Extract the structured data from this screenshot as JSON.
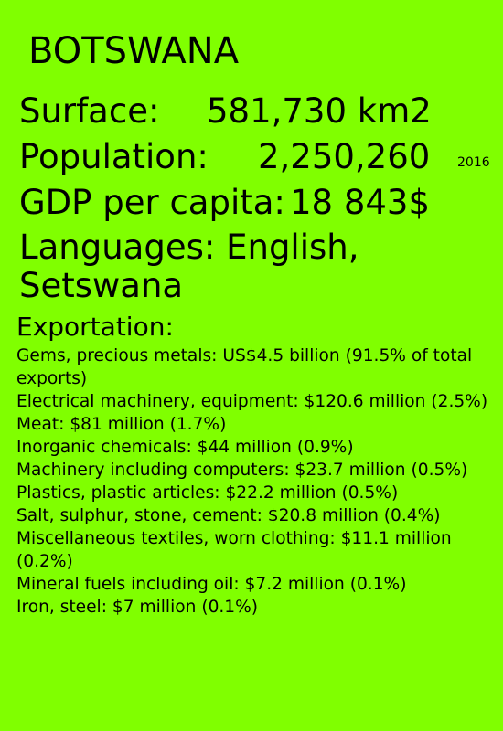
{
  "country": "BOTSWANA",
  "facts": {
    "surface_label": "Surface:",
    "surface_value": "581,730 km2",
    "population_label": "Population:",
    "population_value": "2,250,260",
    "population_year": "2016",
    "gdp_label": "GDP per capita:",
    "gdp_value": "18 843$",
    "languages_label": "Languages:",
    "languages_value": "English, Setswana"
  },
  "exportation": {
    "heading": "Exportation:",
    "items": [
      "Gems, precious metals: US$4.5 billion (91.5% of total exports)",
      "Electrical machinery, equipment: $120.6 million (2.5%)",
      "Meat: $81 million (1.7%)",
      "Inorganic chemicals: $44 million (0.9%)",
      "Machinery including computers: $23.7 million (0.5%)",
      "Plastics, plastic articles: $22.2 million (0.5%)",
      "Salt, sulphur, stone, cement: $20.8 million (0.4%)",
      "Miscellaneous textiles, worn clothing: $11.1 million (0.2%)",
      "Mineral fuels including oil: $7.2 million (0.1%)",
      "Iron, steel: $7 million (0.1%)"
    ]
  },
  "colors": {
    "background": "#80ff00",
    "text": "#000000"
  }
}
